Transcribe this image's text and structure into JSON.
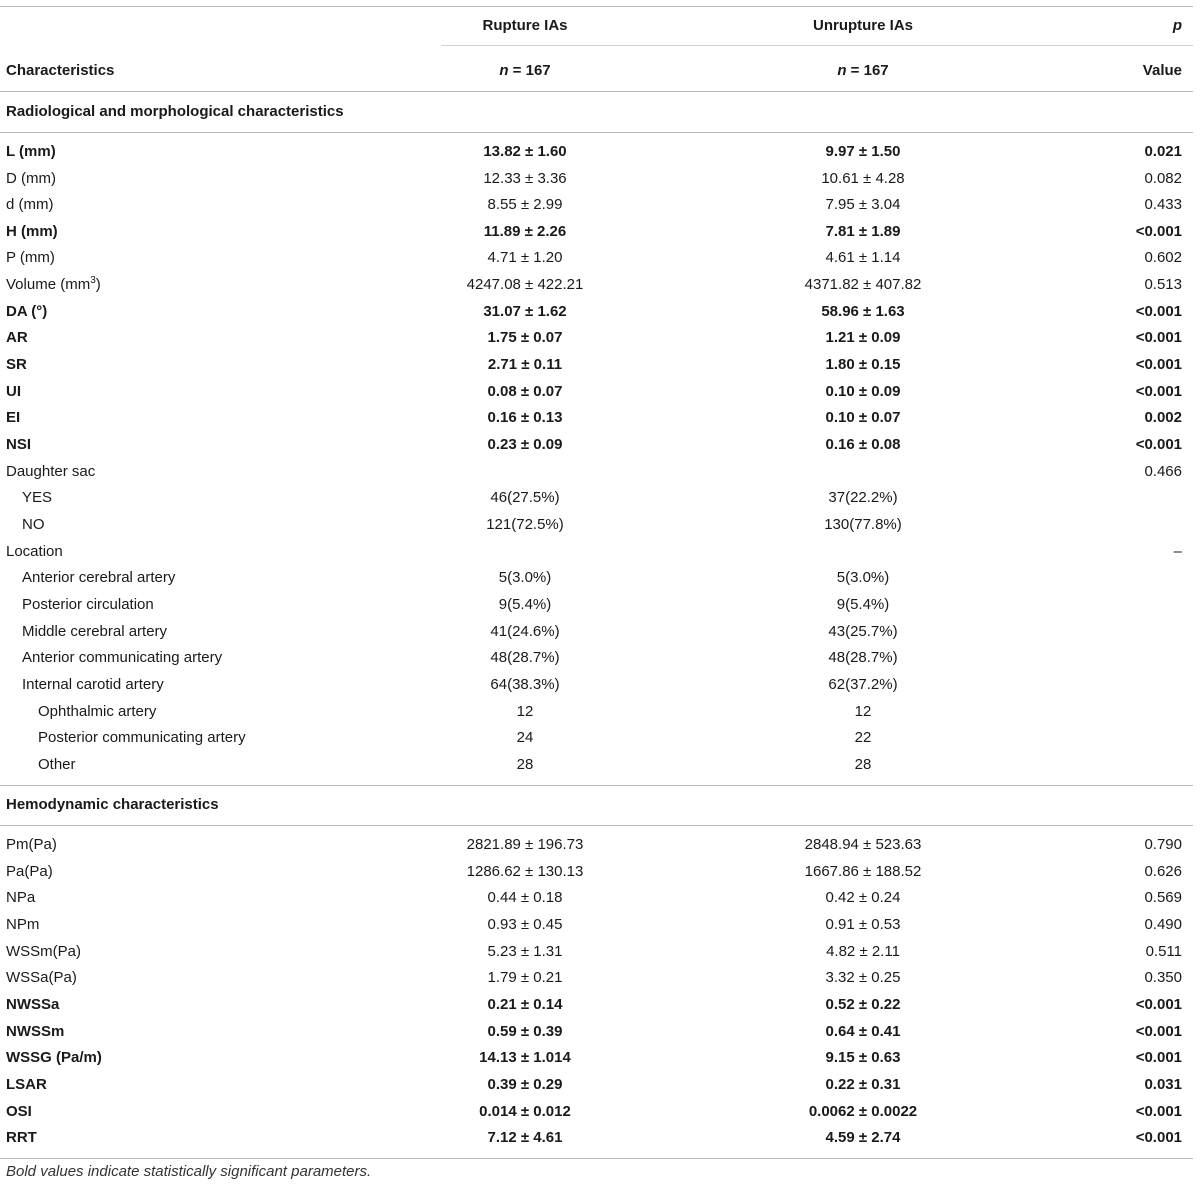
{
  "header": {
    "col_rupture": "Rupture IAs",
    "col_unrupture": "Unrupture IAs",
    "col_p_top": "p",
    "col_characteristics": "Characteristics",
    "n_rupture": "n = 167",
    "n_unrupture": "n = 167",
    "col_p_bottom": "Value"
  },
  "sections": {
    "radiological": "Radiological and morphological characteristics",
    "hemodynamic": "Hemodynamic characteristics"
  },
  "rows": {
    "L": {
      "label": "L (mm)",
      "r": "13.82 ± 1.60",
      "u": "9.97 ± 1.50",
      "p": "0.021"
    },
    "D": {
      "label": "D (mm)",
      "r": "12.33 ± 3.36",
      "u": "10.61 ± 4.28",
      "p": "0.082"
    },
    "d": {
      "label": "d (mm)",
      "r": "8.55 ± 2.99",
      "u": "7.95 ± 3.04",
      "p": "0.433"
    },
    "H": {
      "label": "H (mm)",
      "r": "11.89 ± 2.26",
      "u": "7.81 ± 1.89",
      "p": "<0.001"
    },
    "P": {
      "label": "P (mm)",
      "r": "4.71 ± 1.20",
      "u": "4.61 ± 1.14",
      "p": "0.602"
    },
    "Vol": {
      "label": "Volume (mm",
      "label_sup": "3",
      "label_end": ")",
      "r": "4247.08 ± 422.21",
      "u": "4371.82 ± 407.82",
      "p": "0.513"
    },
    "DA": {
      "label": "DA (°)",
      "r": "31.07 ± 1.62",
      "u": "58.96 ± 1.63",
      "p": "<0.001"
    },
    "AR": {
      "label": "AR",
      "r": "1.75 ± 0.07",
      "u": "1.21 ± 0.09",
      "p": "<0.001"
    },
    "SR": {
      "label": "SR",
      "r": "2.71 ± 0.11",
      "u": "1.80 ± 0.15",
      "p": "<0.001"
    },
    "UI": {
      "label": "UI",
      "r": "0.08 ± 0.07",
      "u": "0.10 ± 0.09",
      "p": "<0.001"
    },
    "EI": {
      "label": "EI",
      "r": "0.16 ± 0.13",
      "u": "0.10 ± 0.07",
      "p": "0.002"
    },
    "NSI": {
      "label": "NSI",
      "r": "0.23 ± 0.09",
      "u": "0.16 ± 0.08",
      "p": "<0.001"
    },
    "DS": {
      "label": "Daughter sac",
      "p": "0.466"
    },
    "YES": {
      "label": "YES",
      "r": "46(27.5%)",
      "u": "37(22.2%)"
    },
    "NO": {
      "label": "NO",
      "r": "121(72.5%)",
      "u": "130(77.8%)"
    },
    "LOC": {
      "label": "Location",
      "p": "–"
    },
    "ACA": {
      "label": "Anterior cerebral artery",
      "r": "5(3.0%)",
      "u": "5(3.0%)"
    },
    "PC": {
      "label": "Posterior circulation",
      "r": "9(5.4%)",
      "u": "9(5.4%)"
    },
    "MCA": {
      "label": "Middle cerebral artery",
      "r": "41(24.6%)",
      "u": "43(25.7%)"
    },
    "ACoA": {
      "label": "Anterior communicating artery",
      "r": "48(28.7%)",
      "u": "48(28.7%)"
    },
    "ICA": {
      "label": "Internal carotid artery",
      "r": "64(38.3%)",
      "u": "62(37.2%)"
    },
    "OA": {
      "label": "Ophthalmic artery",
      "r": "12",
      "u": "12"
    },
    "PCoA": {
      "label": "Posterior communicating artery",
      "r": "24",
      "u": "22"
    },
    "OTH": {
      "label": "Other",
      "r": "28",
      "u": "28"
    },
    "Pm": {
      "label": "Pm(Pa)",
      "r": "2821.89 ± 196.73",
      "u": "2848.94 ± 523.63",
      "p": "0.790"
    },
    "Pa": {
      "label": "Pa(Pa)",
      "r": "1286.62 ± 130.13",
      "u": "1667.86 ± 188.52",
      "p": "0.626"
    },
    "NPa": {
      "label": "NPa",
      "r": "0.44 ± 0.18",
      "u": "0.42 ± 0.24",
      "p": "0.569"
    },
    "NPm": {
      "label": "NPm",
      "r": "0.93 ± 0.45",
      "u": "0.91 ± 0.53",
      "p": "0.490"
    },
    "WSSm": {
      "label": "WSSm(Pa)",
      "r": "5.23 ± 1.31",
      "u": "4.82 ± 2.11",
      "p": "0.511"
    },
    "WSSa": {
      "label": "WSSa(Pa)",
      "r": "1.79 ± 0.21",
      "u": "3.32 ± 0.25",
      "p": "0.350"
    },
    "NWSSa": {
      "label": "NWSSa",
      "r": "0.21 ± 0.14",
      "u": "0.52 ± 0.22",
      "p": "<0.001"
    },
    "NWSSm": {
      "label": "NWSSm",
      "r": "0.59 ± 0.39",
      "u": "0.64 ± 0.41",
      "p": "<0.001"
    },
    "WSSG": {
      "label": "WSSG (Pa/m)",
      "r": "14.13 ± 1.014",
      "u": "9.15 ± 0.63",
      "p": "<0.001"
    },
    "LSAR": {
      "label": "LSAR",
      "r": "0.39 ± 0.29",
      "u": "0.22 ± 0.31",
      "p": "0.031"
    },
    "OSI": {
      "label": "OSI",
      "r": "0.014 ± 0.012",
      "u": "0.0062 ± 0.0022",
      "p": "<0.001"
    },
    "RRT": {
      "label": "RRT",
      "r": "7.12 ± 4.61",
      "u": "4.59 ± 2.74",
      "p": "<0.001"
    }
  },
  "footnote": "Bold values indicate statistically significant parameters."
}
